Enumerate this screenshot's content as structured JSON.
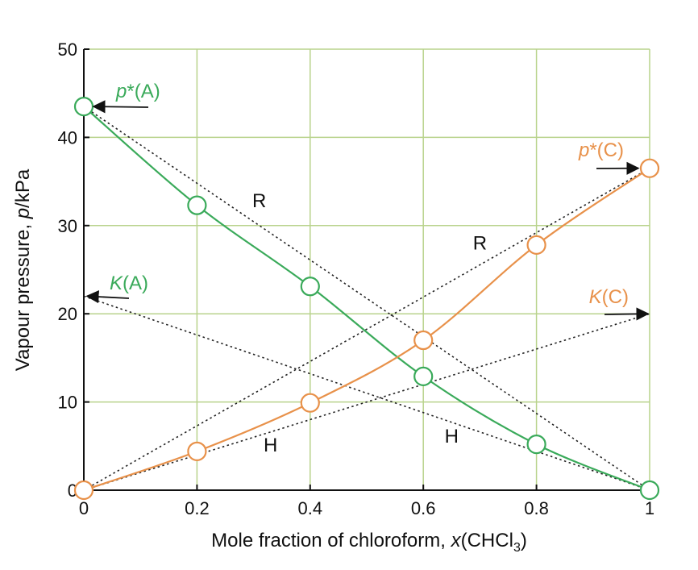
{
  "chart_data": {
    "type": "line",
    "xlabel": "Mole fraction of chloroform, x(CHCl₃)",
    "xlabel_parts": {
      "pre": "Mole fraction of chloroform, ",
      "var": "x",
      "open": "(CHCl",
      "sub": "3",
      "close": ")"
    },
    "ylabel": "Vapour pressure, p/kPa",
    "ylabel_parts": {
      "pre": "Vapour pressure, ",
      "var": "p",
      "post": "/kPa"
    },
    "xlim": [
      0,
      1
    ],
    "ylim": [
      0,
      50
    ],
    "x_ticks": [
      0,
      0.2,
      0.4,
      0.6,
      0.8,
      1
    ],
    "x_tick_labels": [
      "0",
      "0.2",
      "0.4",
      "0.6",
      "0.8",
      "1"
    ],
    "y_ticks": [
      0,
      10,
      20,
      30,
      40,
      50
    ],
    "y_tick_labels": [
      "0",
      "10",
      "20",
      "30",
      "40",
      "50"
    ],
    "grid": true,
    "series": [
      {
        "key": "acetone",
        "color": "#3aaa5a",
        "x": [
          0,
          0.2,
          0.4,
          0.6,
          0.8,
          1
        ],
        "y": [
          43.5,
          32.3,
          23.1,
          12.9,
          5.2,
          0
        ]
      },
      {
        "key": "chloroform",
        "color": "#e8914a",
        "x": [
          0,
          0.2,
          0.4,
          0.6,
          0.8,
          1
        ],
        "y": [
          0,
          4.4,
          9.9,
          17.0,
          27.8,
          36.5
        ]
      }
    ],
    "reference_lines": [
      {
        "label": "R",
        "from": [
          0,
          43.5
        ],
        "to": [
          1,
          0
        ]
      },
      {
        "label": "R",
        "from": [
          0,
          0
        ],
        "to": [
          1,
          36.5
        ]
      },
      {
        "label": "H",
        "from": [
          0,
          22
        ],
        "to": [
          1,
          0
        ]
      },
      {
        "label": "H",
        "from": [
          0,
          0
        ],
        "to": [
          1,
          20
        ]
      }
    ],
    "annotations": [
      {
        "var": "p",
        "text": "*(A)",
        "color": "#3aaa5a",
        "points_to": [
          0,
          43.5
        ]
      },
      {
        "var": "K",
        "text": "(A)",
        "color": "#3aaa5a",
        "points_to": [
          0,
          22
        ]
      },
      {
        "var": "p",
        "text": "*(C)",
        "color": "#e8914a",
        "points_to": [
          1,
          36.5
        ]
      },
      {
        "var": "K",
        "text": "(C)",
        "color": "#e8914a",
        "points_to": [
          1,
          20
        ]
      }
    ]
  }
}
